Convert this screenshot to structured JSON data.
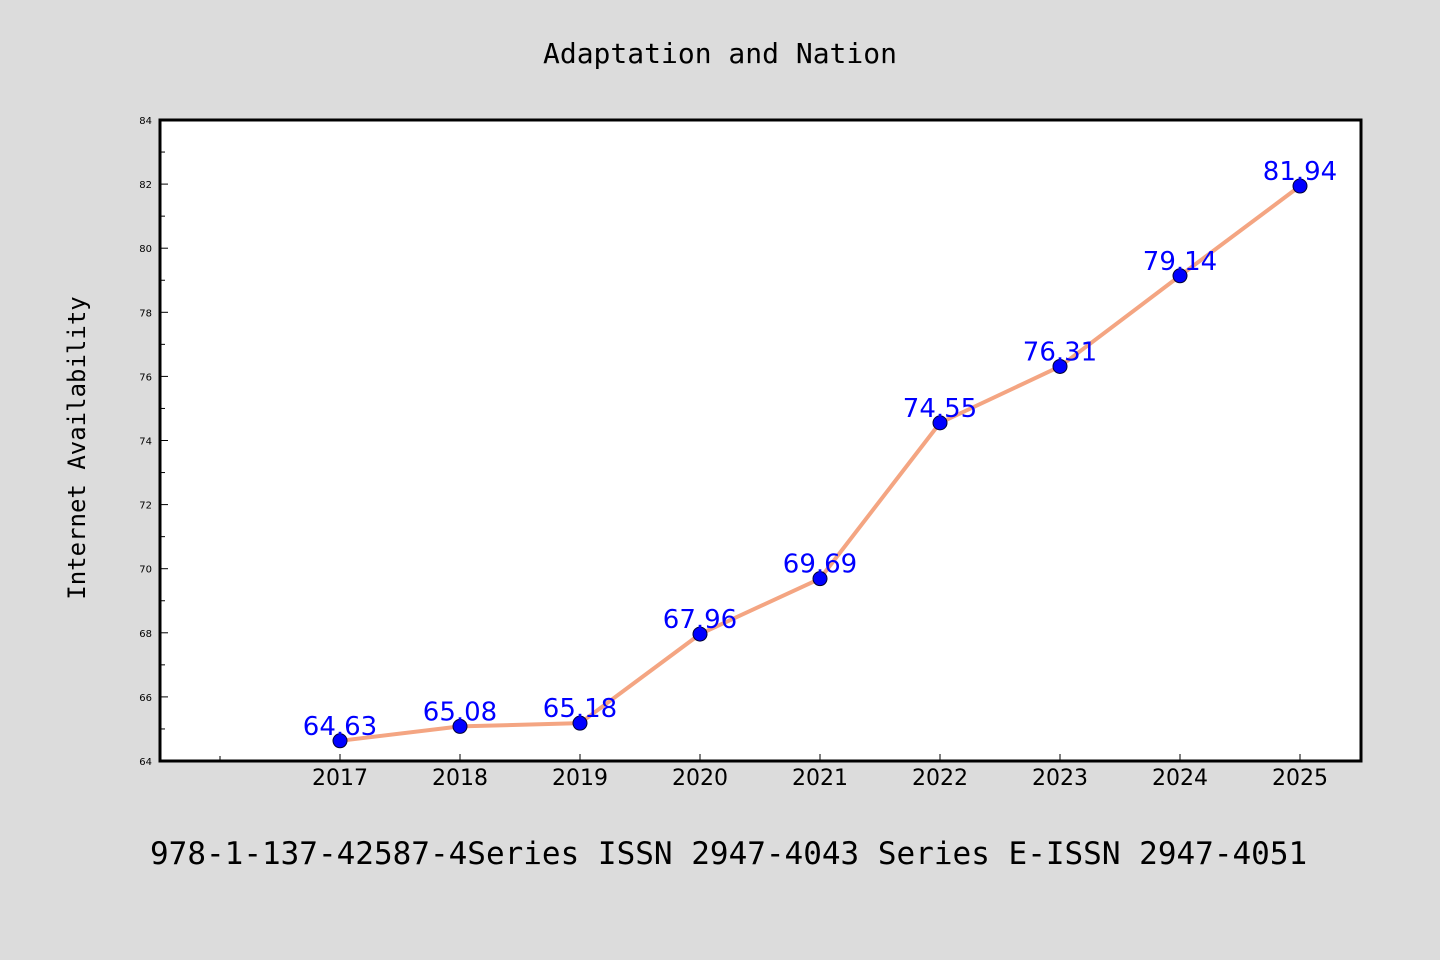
{
  "figure": {
    "background": "#dcdcdc",
    "footer_text": "978-1-137-42587-4Series ISSN 2947-4043 Series E-ISSN 2947-4051"
  },
  "chart_data": {
    "type": "line",
    "title": "Adaptation and Nation",
    "xlabel": "",
    "ylabel": "Internet Availability",
    "categories": [
      "2017",
      "2018",
      "2019",
      "2020",
      "2021",
      "2022",
      "2023",
      "2024",
      "2025"
    ],
    "series": [
      {
        "values": [
          64.63,
          65.08,
          65.18,
          67.96,
          69.69,
          74.55,
          76.31,
          79.14,
          81.94
        ],
        "line_color": "#f4a582",
        "marker_color": "#0000ff",
        "label_color": "#0000ff"
      }
    ],
    "data_labels": [
      "64.63",
      "65.08",
      "65.18",
      "67.96",
      "69.69",
      "74.55",
      "76.31",
      "79.14",
      "81.94"
    ],
    "ylim": [
      64,
      84
    ],
    "y_ticks": [
      "64",
      "66",
      "68",
      "70",
      "72",
      "74",
      "76",
      "78",
      "80",
      "82",
      "84"
    ],
    "grid": false,
    "legend": "none"
  }
}
